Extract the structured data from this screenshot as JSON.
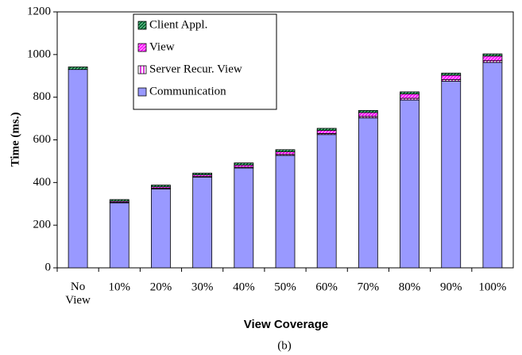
{
  "chart_data": {
    "type": "bar",
    "stacked": true,
    "xlabel": "View Coverage",
    "ylabel": "Time (ms.)",
    "caption": "(b)",
    "categories": [
      "No View",
      "10%",
      "20%",
      "30%",
      "40%",
      "50%",
      "60%",
      "70%",
      "80%",
      "90%",
      "100%"
    ],
    "series": [
      {
        "name": "Communication",
        "color": "#9999ff",
        "values": [
          930,
          305,
          370,
          425,
          468,
          527,
          625,
          703,
          787,
          875,
          963
        ]
      },
      {
        "name": "Server Recur. View",
        "color": "#cc00cc",
        "values": [
          0,
          2,
          3,
          3,
          4,
          5,
          5,
          7,
          8,
          8,
          8
        ]
      },
      {
        "name": "View",
        "color": "#ff00ff",
        "values": [
          0,
          5,
          7,
          8,
          10,
          12,
          14,
          18,
          20,
          20,
          22
        ]
      },
      {
        "name": "Client Appl.",
        "color": "#006633",
        "values": [
          12,
          8,
          8,
          8,
          10,
          10,
          10,
          10,
          10,
          10,
          10
        ]
      }
    ],
    "ylim": [
      0,
      1200
    ],
    "yticks": [
      0,
      200,
      400,
      600,
      800,
      1000,
      1200
    ]
  }
}
